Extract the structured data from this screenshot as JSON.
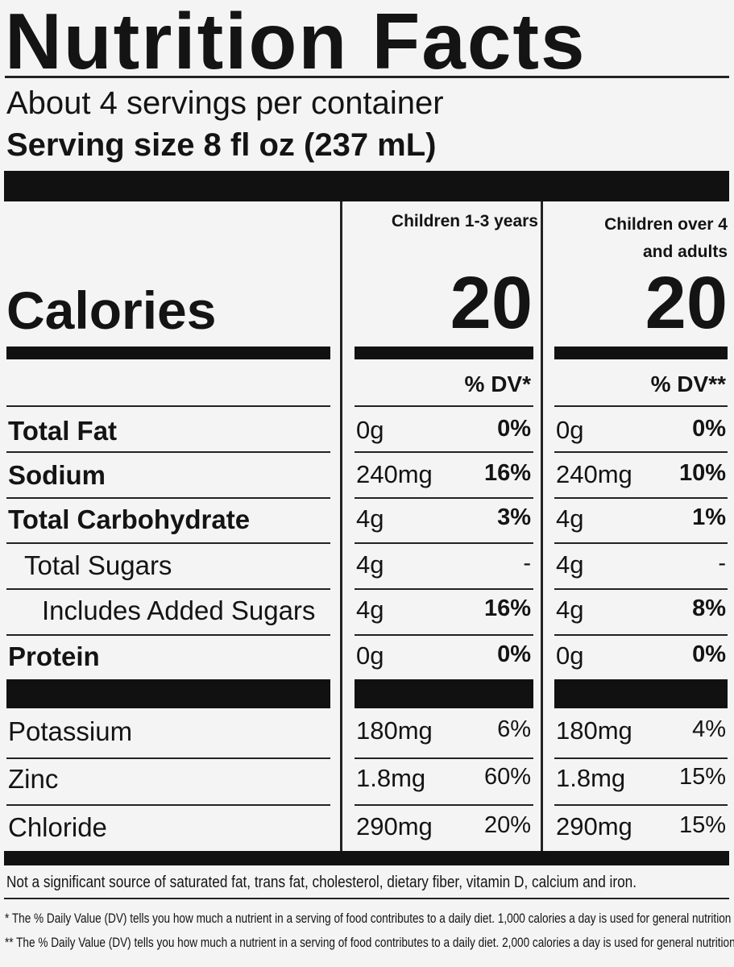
{
  "header": {
    "title": "Nutrition Facts",
    "servings": "About 4 servings per container",
    "serving_size": "Serving size 8 fl oz (237 mL)"
  },
  "columns": [
    "Children 1-3 years",
    "Children over 4 and adults"
  ],
  "calories": {
    "label": "Calories",
    "values": [
      "20",
      "20"
    ]
  },
  "dv_headers": [
    "% DV*",
    "% DV**"
  ],
  "rows": [
    {
      "name": "Total Fat",
      "amounts": [
        "0g",
        "0g"
      ],
      "dv": [
        "0%",
        "0%"
      ]
    },
    {
      "name": "Sodium",
      "amounts": [
        "240mg",
        "240mg"
      ],
      "dv": [
        "16%",
        "10%"
      ]
    },
    {
      "name": "Total Carbohydrate",
      "amounts": [
        "4g",
        "4g"
      ],
      "dv": [
        "3%",
        "1%"
      ]
    },
    {
      "name": "Total Sugars",
      "amounts": [
        "4g",
        "4g"
      ],
      "dv": [
        "-",
        "-"
      ]
    },
    {
      "name": "Includes Added Sugars",
      "amounts": [
        "4g",
        "4g"
      ],
      "dv": [
        "16%",
        "8%"
      ]
    },
    {
      "name": "Protein",
      "amounts": [
        "0g",
        "0g"
      ],
      "dv": [
        "0%",
        "0%"
      ]
    },
    {
      "name": "Potassium",
      "amounts": [
        "180mg",
        "180mg"
      ],
      "dv": [
        "6%",
        "4%"
      ]
    },
    {
      "name": "Zinc",
      "amounts": [
        "1.8mg",
        "1.8mg"
      ],
      "dv": [
        "60%",
        "15%"
      ]
    },
    {
      "name": "Chloride",
      "amounts": [
        "290mg",
        "290mg"
      ],
      "dv": [
        "20%",
        "15%"
      ]
    }
  ],
  "footnotes": [
    "Not a significant source of saturated fat, trans fat, cholesterol, dietary fiber, vitamin D, calcium and iron.",
    "* The % Daily Value (DV) tells you how much a nutrient in a serving of food contributes to a daily diet. 1,000 calories a day is used for general nutrition advice.",
    "** The % Daily Value (DV) tells you how much a nutrient in a serving of food contributes to a daily diet. 2,000 calories a day is used for general nutrition advice."
  ]
}
